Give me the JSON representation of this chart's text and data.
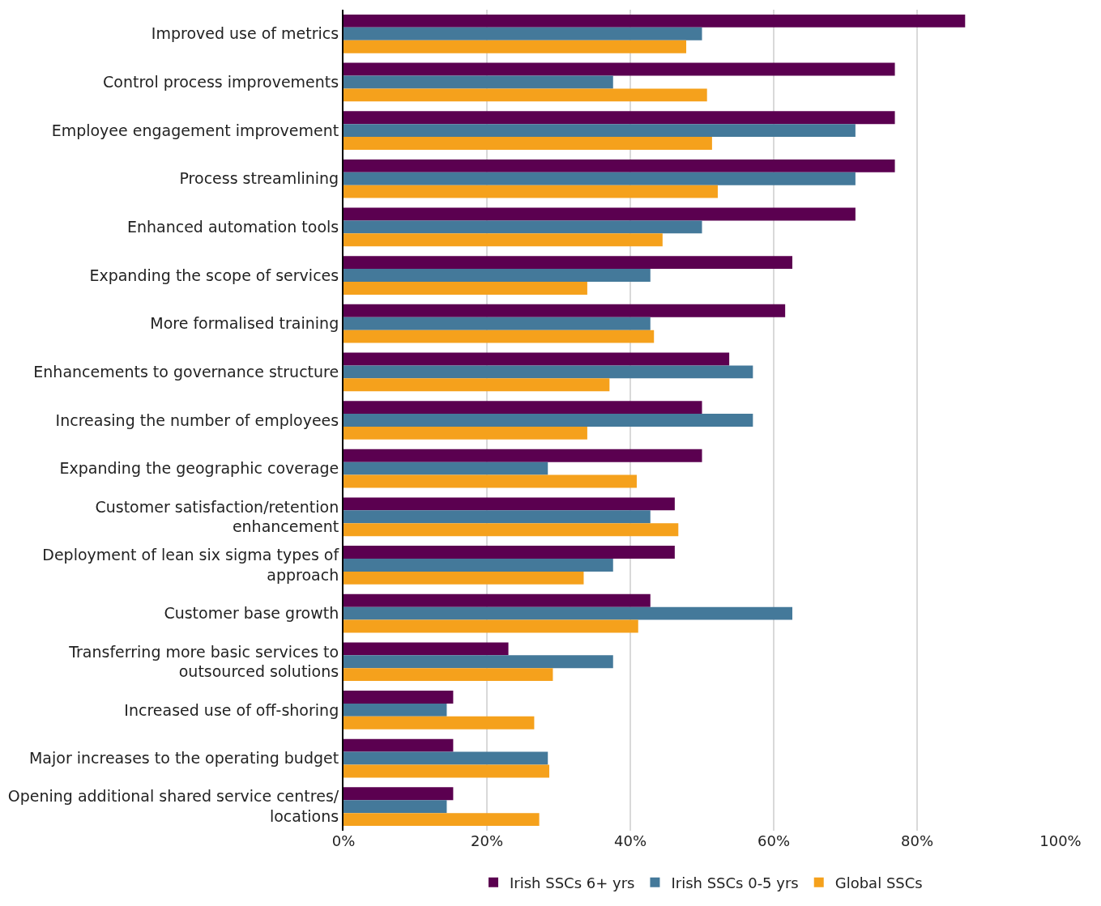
{
  "chart_data": {
    "type": "bar",
    "orientation": "horizontal",
    "categories": [
      "Improved use of metrics",
      "Control process improvements",
      "Employee engagement improvement",
      "Process streamlining",
      "Enhanced automation tools",
      "Expanding the scope of services",
      "More formalised training",
      "Enhancements to governance structure",
      "Increasing the number of employees",
      "Expanding the geographic coverage",
      "Customer satisfaction/retention enhancement",
      "Deployment of lean six sigma types of approach",
      "Customer base growth",
      "Transferring more basic services to outsourced solutions",
      "Increased use of off-shoring",
      "Major increases to the operating budget",
      "Opening additional shared service centres/ locations"
    ],
    "series": [
      {
        "name": "Irish SSCs 6+ yrs",
        "color": "#5b0050",
        "values": [
          86.7,
          76.9,
          76.9,
          76.9,
          71.4,
          62.6,
          61.6,
          53.8,
          50,
          50,
          46.2,
          46.2,
          42.8,
          23,
          15.3,
          15.3,
          15.3
        ]
      },
      {
        "name": "Irish SSCs 0-5 yrs",
        "color": "#44799a",
        "values": [
          50,
          37.6,
          71.4,
          71.4,
          50,
          42.8,
          42.8,
          57.1,
          57.1,
          28.5,
          42.8,
          37.6,
          62.6,
          37.6,
          14.4,
          28.5,
          14.4
        ]
      },
      {
        "name": "Global SSCs",
        "color": "#f5a11c",
        "values": [
          47.8,
          50.7,
          51.4,
          52.2,
          44.5,
          34,
          43.3,
          37.1,
          34,
          40.9,
          46.7,
          33.5,
          41.1,
          29.2,
          26.6,
          28.7,
          27.3
        ]
      }
    ],
    "xlim": [
      0,
      100
    ],
    "xticks": [
      {
        "value": 0,
        "label": "0%"
      },
      {
        "value": 20,
        "label": "20%"
      },
      {
        "value": 40,
        "label": "40%"
      },
      {
        "value": 60,
        "label": "60%"
      },
      {
        "value": 80,
        "label": "80%"
      },
      {
        "value": 100,
        "label": "100%"
      }
    ],
    "grid": "x",
    "legend": "bottom"
  }
}
